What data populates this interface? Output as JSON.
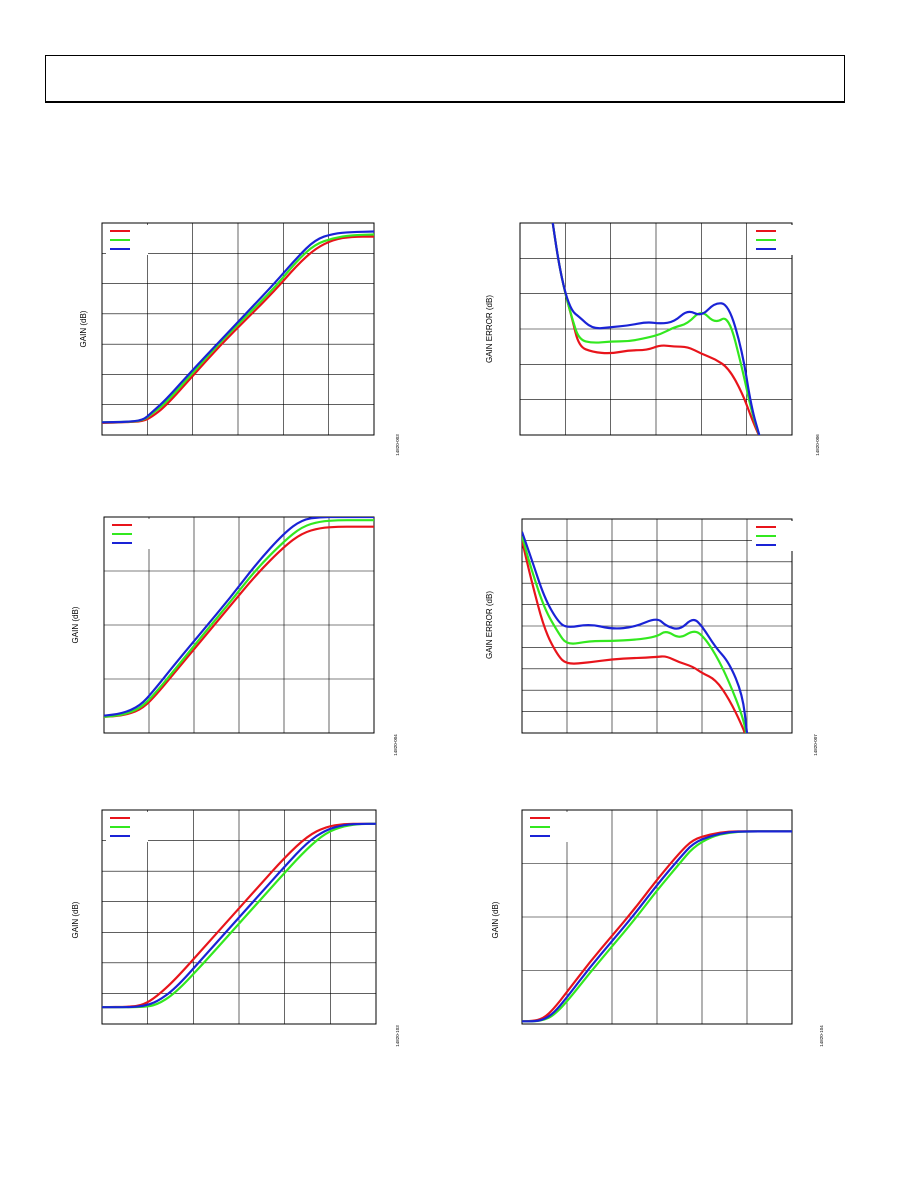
{
  "colors": {
    "red": "#e8141b",
    "green": "#33e81f",
    "blue": "#1a23d6",
    "grid": "#000000"
  },
  "chart_data": [
    {
      "id": "top-left",
      "type": "line",
      "ylabel": "GAIN (dB)",
      "fig_id": "14820-003",
      "grid": {
        "cols": 6,
        "rows": 7
      },
      "xlim": [
        0,
        6
      ],
      "ylim": [
        0,
        7
      ],
      "legend": "top-left",
      "series": [
        {
          "color": "red",
          "x": [
            0,
            0.5,
            0.9,
            1.1,
            1.4,
            2,
            2.6,
            3.2,
            3.8,
            4.3,
            4.7,
            5.1,
            5.5,
            6
          ],
          "y": [
            0.4,
            0.42,
            0.45,
            0.6,
            0.95,
            1.95,
            2.95,
            3.85,
            4.75,
            5.6,
            6.15,
            6.45,
            6.55,
            6.55
          ]
        },
        {
          "color": "green",
          "x": [
            0,
            0.5,
            0.9,
            1.1,
            1.4,
            2,
            2.6,
            3.2,
            3.8,
            4.3,
            4.7,
            5.1,
            5.5,
            6
          ],
          "y": [
            0.42,
            0.43,
            0.47,
            0.7,
            1.05,
            2.05,
            3.05,
            3.95,
            4.85,
            5.75,
            6.3,
            6.5,
            6.6,
            6.62
          ]
        },
        {
          "color": "blue",
          "x": [
            0,
            0.5,
            0.9,
            1.1,
            1.4,
            2,
            2.6,
            3.2,
            3.8,
            4.3,
            4.7,
            5.1,
            5.5,
            6
          ],
          "y": [
            0.42,
            0.43,
            0.48,
            0.75,
            1.15,
            2.15,
            3.1,
            4.05,
            5,
            5.85,
            6.45,
            6.65,
            6.7,
            6.72
          ]
        }
      ]
    },
    {
      "id": "top-right",
      "type": "line",
      "ylabel": "GAIN ERROR (dB)",
      "fig_id": "14820-006",
      "grid": {
        "cols": 6,
        "rows": 6
      },
      "xlim": [
        0,
        6
      ],
      "ylim": [
        0,
        6
      ],
      "legend": "top-right",
      "series": [
        {
          "color": "red",
          "x": [
            0.7,
            0.85,
            1,
            1.15,
            1.3,
            1.6,
            2,
            2.4,
            2.8,
            3.1,
            3.4,
            3.7,
            4,
            4.3,
            4.6,
            4.9,
            5.1,
            5.3
          ],
          "y": [
            6.2,
            4.9,
            4,
            3.3,
            2.5,
            2.35,
            2.3,
            2.4,
            2.4,
            2.55,
            2.5,
            2.5,
            2.3,
            2.15,
            1.9,
            1.2,
            0.5,
            -0.1
          ]
        },
        {
          "color": "green",
          "x": [
            0.7,
            0.85,
            1,
            1.15,
            1.3,
            1.6,
            2,
            2.4,
            2.8,
            3.1,
            3.4,
            3.7,
            4,
            4.3,
            4.6,
            4.9,
            5.1,
            5.3
          ],
          "y": [
            6.2,
            4.9,
            4,
            3.3,
            2.7,
            2.6,
            2.65,
            2.65,
            2.75,
            2.85,
            3.05,
            3.15,
            3.55,
            3.15,
            3.4,
            1.9,
            0.7,
            -0.1
          ]
        },
        {
          "color": "blue",
          "x": [
            0.7,
            0.85,
            1,
            1.15,
            1.3,
            1.6,
            2,
            2.4,
            2.8,
            3.1,
            3.4,
            3.7,
            4,
            4.3,
            4.6,
            4.9,
            5.1,
            5.3
          ],
          "y": [
            6.2,
            4.9,
            4,
            3.5,
            3.35,
            3,
            3.05,
            3.1,
            3.2,
            3.15,
            3.2,
            3.55,
            3.35,
            3.75,
            3.7,
            2.4,
            0.8,
            -0.1
          ]
        }
      ]
    },
    {
      "id": "mid-left",
      "type": "line",
      "ylabel": "GAIN (dB)",
      "fig_id": "14820-004",
      "grid": {
        "cols": 6,
        "rows": 4
      },
      "xlim": [
        0,
        6
      ],
      "ylim": [
        0,
        4
      ],
      "legend": "top-left",
      "series": [
        {
          "color": "red",
          "x": [
            0,
            0.4,
            0.8,
            1.1,
            1.6,
            2.2,
            2.8,
            3.4,
            4,
            4.4,
            4.8,
            5.2,
            5.6,
            6
          ],
          "y": [
            0.3,
            0.32,
            0.42,
            0.65,
            1.15,
            1.75,
            2.35,
            2.95,
            3.45,
            3.7,
            3.8,
            3.82,
            3.82,
            3.82
          ]
        },
        {
          "color": "green",
          "x": [
            0,
            0.4,
            0.8,
            1.1,
            1.6,
            2.2,
            2.8,
            3.4,
            4,
            4.4,
            4.8,
            5.2,
            5.6,
            6
          ],
          "y": [
            0.3,
            0.33,
            0.45,
            0.7,
            1.2,
            1.82,
            2.42,
            3.05,
            3.55,
            3.82,
            3.92,
            3.94,
            3.94,
            3.94
          ]
        },
        {
          "color": "blue",
          "x": [
            0,
            0.4,
            0.8,
            1.1,
            1.6,
            2.2,
            2.8,
            3.4,
            4,
            4.4,
            4.8,
            5.2,
            5.6,
            6
          ],
          "y": [
            0.32,
            0.36,
            0.5,
            0.78,
            1.3,
            1.9,
            2.5,
            3.15,
            3.7,
            3.95,
            4,
            4,
            4,
            4
          ]
        }
      ]
    },
    {
      "id": "mid-right",
      "type": "line",
      "ylabel": "GAIN ERROR (dB)",
      "fig_id": "14820-007",
      "grid": {
        "cols": 6,
        "rows": 10
      },
      "xlim": [
        0,
        6
      ],
      "ylim": [
        0,
        10
      ],
      "legend": "top-right",
      "series": [
        {
          "color": "red",
          "x": [
            0,
            0.2,
            0.5,
            0.8,
            1,
            1.5,
            2,
            2.5,
            3,
            3.2,
            3.5,
            3.8,
            4,
            4.3,
            4.6,
            4.9,
            5
          ],
          "y": [
            9,
            7.2,
            4.8,
            3.6,
            3.2,
            3.3,
            3.45,
            3.5,
            3.55,
            3.6,
            3.3,
            3.1,
            2.8,
            2.5,
            1.6,
            0.3,
            -0.3
          ]
        },
        {
          "color": "green",
          "x": [
            0,
            0.2,
            0.5,
            0.8,
            1,
            1.5,
            2,
            2.5,
            3,
            3.2,
            3.5,
            3.8,
            4,
            4.3,
            4.6,
            4.9,
            5
          ],
          "y": [
            9.2,
            7.7,
            5.8,
            4.7,
            4.1,
            4.3,
            4.3,
            4.35,
            4.5,
            4.8,
            4.4,
            4.8,
            4.6,
            3.7,
            2.4,
            0.8,
            -0.2
          ]
        },
        {
          "color": "blue",
          "x": [
            0,
            0.2,
            0.5,
            0.8,
            1,
            1.5,
            2,
            2.5,
            3,
            3.2,
            3.5,
            3.8,
            4,
            4.3,
            4.6,
            4.9,
            5
          ],
          "y": [
            9.4,
            8.2,
            6.3,
            5.2,
            4.9,
            5.1,
            4.85,
            4.95,
            5.4,
            5,
            4.8,
            5.4,
            5,
            4,
            3.3,
            1.8,
            0
          ]
        }
      ]
    },
    {
      "id": "bottom-left",
      "type": "line",
      "ylabel": "GAIN (dB)",
      "fig_id": "14820-103",
      "grid": {
        "cols": 6,
        "rows": 7
      },
      "xlim": [
        0,
        6
      ],
      "ylim": [
        0,
        7
      ],
      "legend": "top-left",
      "series": [
        {
          "color": "red",
          "x": [
            0,
            0.6,
            0.9,
            1.2,
            1.6,
            2.2,
            2.8,
            3.4,
            4,
            4.5,
            4.9,
            5.3,
            5.7,
            6
          ],
          "y": [
            0.55,
            0.56,
            0.62,
            0.9,
            1.45,
            2.45,
            3.45,
            4.45,
            5.45,
            6.15,
            6.45,
            6.55,
            6.55,
            6.55
          ]
        },
        {
          "color": "green",
          "x": [
            0,
            0.6,
            0.9,
            1.2,
            1.6,
            2.2,
            2.8,
            3.4,
            4,
            4.5,
            4.9,
            5.3,
            5.7,
            6
          ],
          "y": [
            0.55,
            0.55,
            0.56,
            0.62,
            1,
            1.95,
            2.95,
            3.95,
            4.95,
            5.75,
            6.25,
            6.48,
            6.55,
            6.55
          ]
        },
        {
          "color": "blue",
          "x": [
            0,
            0.6,
            0.9,
            1.2,
            1.6,
            2.2,
            2.8,
            3.4,
            4,
            4.5,
            4.9,
            5.3,
            5.7,
            6
          ],
          "y": [
            0.55,
            0.55,
            0.58,
            0.72,
            1.15,
            2.15,
            3.15,
            4.15,
            5.15,
            5.95,
            6.35,
            6.52,
            6.55,
            6.55
          ]
        }
      ]
    },
    {
      "id": "bottom-right",
      "type": "line",
      "ylabel": "GAIN (dB)",
      "fig_id": "14820-104",
      "grid": {
        "cols": 6,
        "rows": 4
      },
      "xlim": [
        0,
        6
      ],
      "ylim": [
        0,
        4
      ],
      "legend": "top-left",
      "series": [
        {
          "color": "red",
          "x": [
            0,
            0.3,
            0.5,
            0.7,
            1,
            1.5,
            2,
            2.5,
            3,
            3.5,
            3.8,
            4.2,
            4.6,
            5,
            5.5,
            6
          ],
          "y": [
            0.05,
            0.06,
            0.12,
            0.28,
            0.6,
            1.15,
            1.65,
            2.15,
            2.7,
            3.2,
            3.45,
            3.55,
            3.6,
            3.6,
            3.6,
            3.6
          ]
        },
        {
          "color": "green",
          "x": [
            0,
            0.3,
            0.5,
            0.7,
            1,
            1.5,
            2,
            2.5,
            3,
            3.5,
            3.8,
            4.2,
            4.6,
            5,
            5.5,
            6
          ],
          "y": [
            0.05,
            0.05,
            0.08,
            0.16,
            0.42,
            0.95,
            1.45,
            1.95,
            2.5,
            3,
            3.3,
            3.5,
            3.58,
            3.6,
            3.6,
            3.6
          ]
        },
        {
          "color": "blue",
          "x": [
            0,
            0.3,
            0.5,
            0.7,
            1,
            1.5,
            2,
            2.5,
            3,
            3.5,
            3.8,
            4.2,
            4.6,
            5,
            5.5,
            6
          ],
          "y": [
            0.05,
            0.05,
            0.09,
            0.2,
            0.5,
            1.05,
            1.55,
            2.05,
            2.6,
            3.1,
            3.38,
            3.52,
            3.59,
            3.6,
            3.6,
            3.6
          ]
        }
      ]
    }
  ]
}
